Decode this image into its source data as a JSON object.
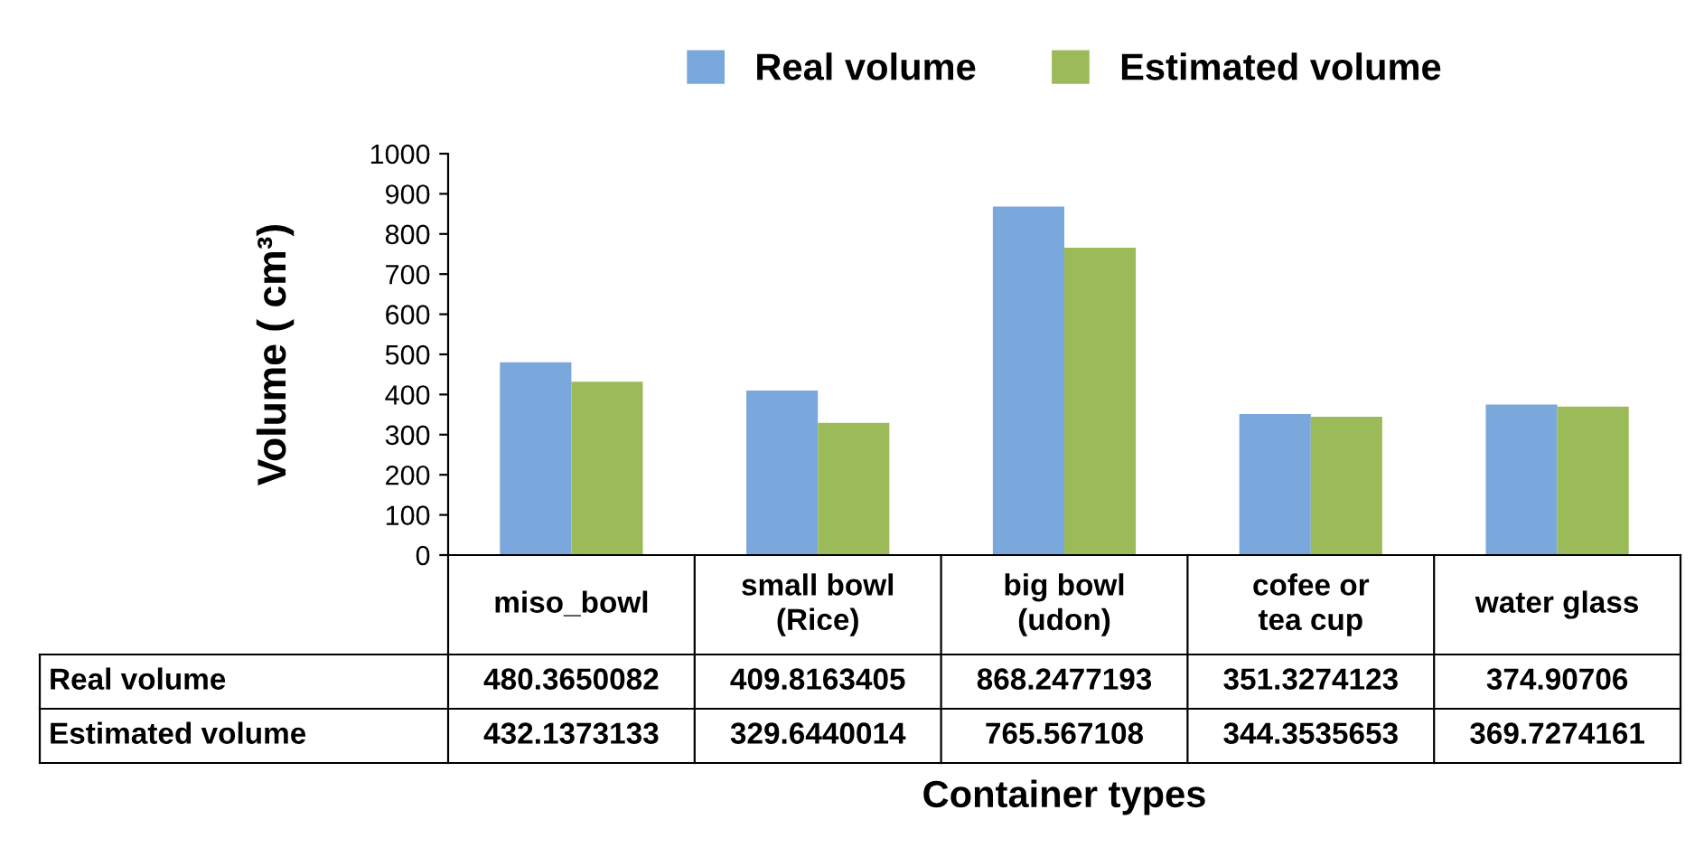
{
  "chart_data": {
    "type": "bar",
    "xlabel": "Container types",
    "ylabel": "Volume ( cm³)",
    "categories": [
      "miso_bowl",
      "small bowl (Rice)",
      "big bowl (udon)",
      "cofee or tea cup",
      "water glass"
    ],
    "series": [
      {
        "name": "Real volume",
        "color": "#7aa7dc",
        "values": [
          480.3650082,
          409.8163405,
          868.2477193,
          351.3274123,
          374.90706
        ]
      },
      {
        "name": "Estimated volume",
        "color": "#9bbb59",
        "values": [
          432.1373133,
          329.6440014,
          765.567108,
          344.3535653,
          369.7274161
        ]
      }
    ],
    "ylim": [
      0,
      1000
    ],
    "yticks": [
      0,
      100,
      200,
      300,
      400,
      500,
      600,
      700,
      800,
      900,
      1000
    ],
    "legend": "top",
    "grid": false,
    "data_labels": true
  }
}
